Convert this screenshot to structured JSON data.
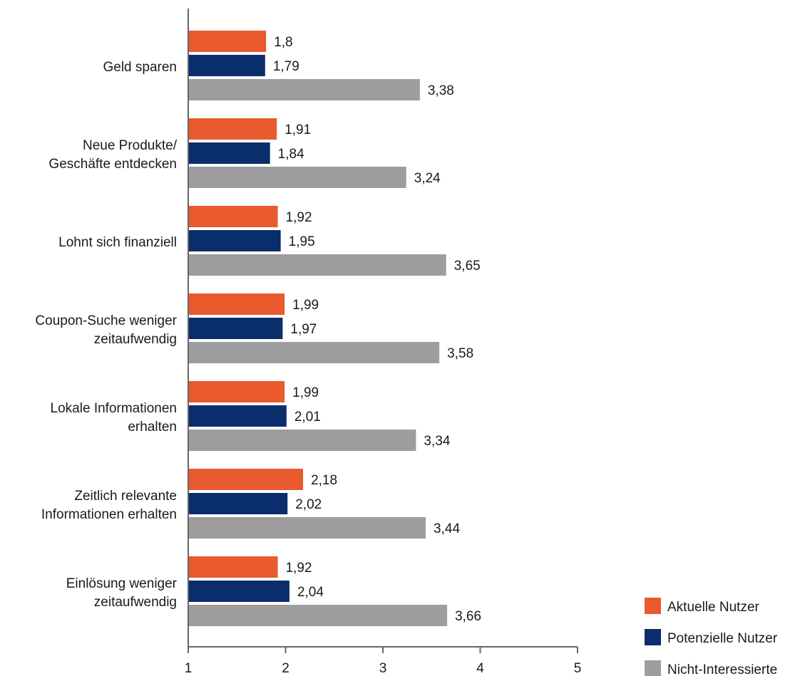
{
  "chart_data": {
    "type": "bar",
    "orientation": "horizontal",
    "title": "",
    "xlabel": "",
    "ylabel": "",
    "xlim": [
      1,
      5
    ],
    "x_ticks": [
      "1",
      "2",
      "3",
      "4",
      "5"
    ],
    "grid": false,
    "legend_position": "bottom-right",
    "categories": [
      [
        "Geld sparen"
      ],
      [
        "Neue Produkte/",
        "Geschäfte entdecken"
      ],
      [
        "Lohnt sich finanziell"
      ],
      [
        "Coupon-Suche weniger",
        "zeitaufwendig"
      ],
      [
        "Lokale Informationen",
        "erhalten"
      ],
      [
        "Zeitlich relevante",
        "Informationen erhalten"
      ],
      [
        "Einlösung weniger",
        "zeitaufwendig"
      ]
    ],
    "series": [
      {
        "name": "Aktuelle Nutzer",
        "color": "#e95a2f",
        "values": [
          1.8,
          1.91,
          1.92,
          1.99,
          1.99,
          2.18,
          1.92
        ],
        "labels": [
          "1,8",
          "1,91",
          "1,92",
          "1,99",
          "1,99",
          "2,18",
          "1,92"
        ]
      },
      {
        "name": "Potenzielle Nutzer",
        "color": "#0a2d6b",
        "values": [
          1.79,
          1.84,
          1.95,
          1.97,
          2.01,
          2.02,
          2.04
        ],
        "labels": [
          "1,79",
          "1,84",
          "1,95",
          "1,97",
          "2,01",
          "2,02",
          "2,04"
        ]
      },
      {
        "name": "Nicht-Interessierte",
        "color": "#9d9d9f",
        "values": [
          3.38,
          3.24,
          3.65,
          3.58,
          3.34,
          3.44,
          3.66
        ],
        "labels": [
          "3,38",
          "3,24",
          "3,65",
          "3,58",
          "3,34",
          "3,44",
          "3,66"
        ]
      }
    ]
  }
}
